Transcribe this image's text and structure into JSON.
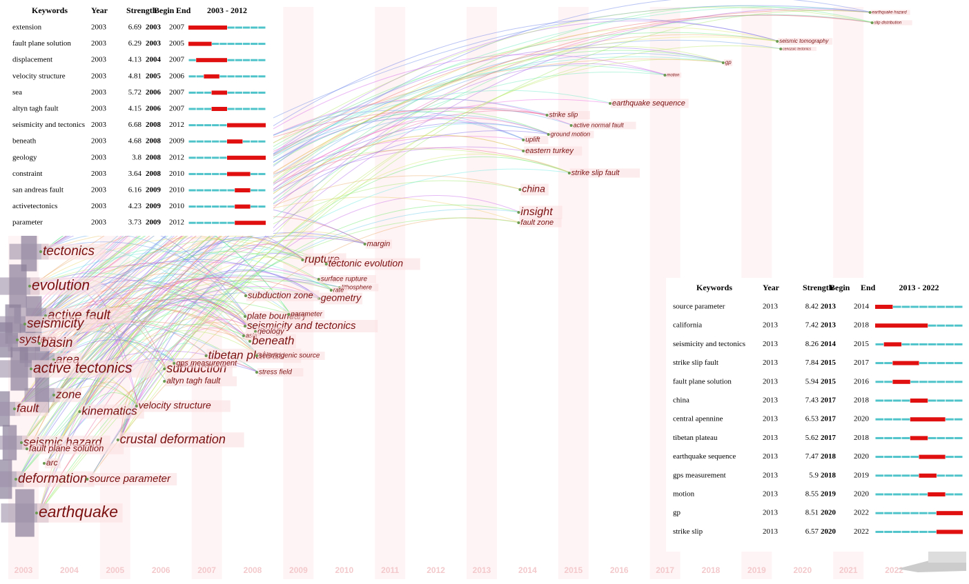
{
  "timezone": {
    "years": [
      2003,
      2004,
      2005,
      2006,
      2007,
      2008,
      2009,
      2010,
      2011,
      2012,
      2013,
      2014,
      2015,
      2016,
      2017,
      2018,
      2019,
      2020,
      2021,
      2022
    ]
  },
  "nodes": [
    {
      "label": "tectonics",
      "year": 2003
    },
    {
      "label": "evolution",
      "year": 2003
    },
    {
      "label": "active fault",
      "year": 2003
    },
    {
      "label": "seismicity",
      "year": 2003
    },
    {
      "label": "system",
      "year": 2003
    },
    {
      "label": "basin",
      "year": 2003
    },
    {
      "label": "area",
      "year": 2003
    },
    {
      "label": "active tectonics",
      "year": 2003
    },
    {
      "label": "zone",
      "year": 2003
    },
    {
      "label": "fault",
      "year": 2003
    },
    {
      "label": "kinematics",
      "year": 2004
    },
    {
      "label": "crustal deformation",
      "year": 2005
    },
    {
      "label": "seismic hazard",
      "year": 2003
    },
    {
      "label": "fault plane solution",
      "year": 2003
    },
    {
      "label": "arc",
      "year": 2003
    },
    {
      "label": "deformation",
      "year": 2003
    },
    {
      "label": "source parameter",
      "year": 2004
    },
    {
      "label": "earthquake",
      "year": 2003
    },
    {
      "label": "velocity structure",
      "year": 2005
    },
    {
      "label": "subduction",
      "year": 2006
    },
    {
      "label": "tibetan plateau",
      "year": 2007
    },
    {
      "label": "gps measurement",
      "year": 2006
    },
    {
      "label": "altyn tagh fault",
      "year": 2006
    },
    {
      "label": "rupture",
      "year": 2009
    },
    {
      "label": "tectonic evolution",
      "year": 2010
    },
    {
      "label": "surface rupture",
      "year": 2010
    },
    {
      "label": "lithosphere",
      "year": 2010
    },
    {
      "label": "rate",
      "year": 2010
    },
    {
      "label": "geometry",
      "year": 2010
    },
    {
      "label": "subduction zone",
      "year": 2008
    },
    {
      "label": "plate boundary",
      "year": 2008
    },
    {
      "label": "parameter",
      "year": 2009
    },
    {
      "label": "seismicity and tectonics",
      "year": 2008
    },
    {
      "label": "geology",
      "year": 2008
    },
    {
      "label": "asia",
      "year": 2008
    },
    {
      "label": "beneath",
      "year": 2008
    },
    {
      "label": "seismogenic source",
      "year": 2008
    },
    {
      "label": "stress field",
      "year": 2008
    },
    {
      "label": "margin",
      "year": 2012
    },
    {
      "label": "fault zone",
      "year": 2014
    },
    {
      "label": "insight",
      "year": 2014
    },
    {
      "label": "china",
      "year": 2014
    },
    {
      "label": "strike slip fault",
      "year": 2015
    },
    {
      "label": "eastern turkey",
      "year": 2016
    },
    {
      "label": "uplift",
      "year": 2016
    },
    {
      "label": "ground motion",
      "year": 2017
    },
    {
      "label": "active normal fault",
      "year": 2017
    },
    {
      "label": "strike slip",
      "year": 2017
    },
    {
      "label": "earthquake sequence",
      "year": 2018
    },
    {
      "label": "motion",
      "year": 2019
    },
    {
      "label": "gp",
      "year": 2020
    },
    {
      "label": "cenozoic tectonics",
      "year": 2021
    },
    {
      "label": "seismic tomography",
      "year": 2021
    },
    {
      "label": "slip distribution",
      "year": 2022
    },
    {
      "label": "earthquake hazard",
      "year": 2022
    }
  ],
  "tables": [
    {
      "header": {
        "keywords": "Keywords",
        "year": "Year",
        "strength": "Strength",
        "begin": "Begin",
        "end": "End",
        "range": "2003 - 2012"
      },
      "rows": [
        {
          "keyword": "extension",
          "year": 2003,
          "strength": 6.69,
          "begin": 2003,
          "end": 2007
        },
        {
          "keyword": "fault plane solution",
          "year": 2003,
          "strength": 6.29,
          "begin": 2003,
          "end": 2005
        },
        {
          "keyword": "displacement",
          "year": 2003,
          "strength": 4.13,
          "begin": 2004,
          "end": 2007
        },
        {
          "keyword": "velocity structure",
          "year": 2003,
          "strength": 4.81,
          "begin": 2005,
          "end": 2006
        },
        {
          "keyword": "sea",
          "year": 2003,
          "strength": 5.72,
          "begin": 2006,
          "end": 2007
        },
        {
          "keyword": "altyn tagh fault",
          "year": 2003,
          "strength": 4.15,
          "begin": 2006,
          "end": 2007
        },
        {
          "keyword": "seismicity and tectonics",
          "year": 2003,
          "strength": 6.68,
          "begin": 2008,
          "end": 2012
        },
        {
          "keyword": "beneath",
          "year": 2003,
          "strength": 4.68,
          "begin": 2008,
          "end": 2009
        },
        {
          "keyword": "geology",
          "year": 2003,
          "strength": 3.8,
          "begin": 2008,
          "end": 2012
        },
        {
          "keyword": "constraint",
          "year": 2003,
          "strength": 3.64,
          "begin": 2008,
          "end": 2010
        },
        {
          "keyword": "san andreas fault",
          "year": 2003,
          "strength": 6.16,
          "begin": 2009,
          "end": 2010
        },
        {
          "keyword": "activetectonics",
          "year": 2003,
          "strength": 4.23,
          "begin": 2009,
          "end": 2010
        },
        {
          "keyword": "parameter",
          "year": 2003,
          "strength": 3.73,
          "begin": 2009,
          "end": 2012
        }
      ]
    },
    {
      "header": {
        "keywords": "Keywords",
        "year": "Year",
        "strength": "Strength",
        "begin": "Begin",
        "end": "End",
        "range": "2013 - 2022"
      },
      "rows": [
        {
          "keyword": "source parameter",
          "year": 2013,
          "strength": 8.42,
          "begin": 2013,
          "end": 2014
        },
        {
          "keyword": "california",
          "year": 2013,
          "strength": 7.42,
          "begin": 2013,
          "end": 2018
        },
        {
          "keyword": "seismicity and tectonics",
          "year": 2013,
          "strength": 8.26,
          "begin": 2014,
          "end": 2015
        },
        {
          "keyword": "strike slip fault",
          "year": 2013,
          "strength": 7.84,
          "begin": 2015,
          "end": 2017
        },
        {
          "keyword": "fault plane solution",
          "year": 2013,
          "strength": 5.94,
          "begin": 2015,
          "end": 2016
        },
        {
          "keyword": "china",
          "year": 2013,
          "strength": 7.43,
          "begin": 2017,
          "end": 2018
        },
        {
          "keyword": "central apennine",
          "year": 2013,
          "strength": 6.53,
          "begin": 2017,
          "end": 2020
        },
        {
          "keyword": "tibetan plateau",
          "year": 2013,
          "strength": 5.62,
          "begin": 2017,
          "end": 2018
        },
        {
          "keyword": "earthquake sequence",
          "year": 2013,
          "strength": 7.47,
          "begin": 2018,
          "end": 2020
        },
        {
          "keyword": "gps measurement",
          "year": 2013,
          "strength": 5.9,
          "begin": 2018,
          "end": 2019
        },
        {
          "keyword": "motion",
          "year": 2013,
          "strength": 8.55,
          "begin": 2019,
          "end": 2020
        },
        {
          "keyword": "gp",
          "year": 2013,
          "strength": 8.51,
          "begin": 2020,
          "end": 2022
        },
        {
          "keyword": "strike slip",
          "year": 2013,
          "strength": 6.57,
          "begin": 2020,
          "end": 2022
        }
      ]
    }
  ]
}
